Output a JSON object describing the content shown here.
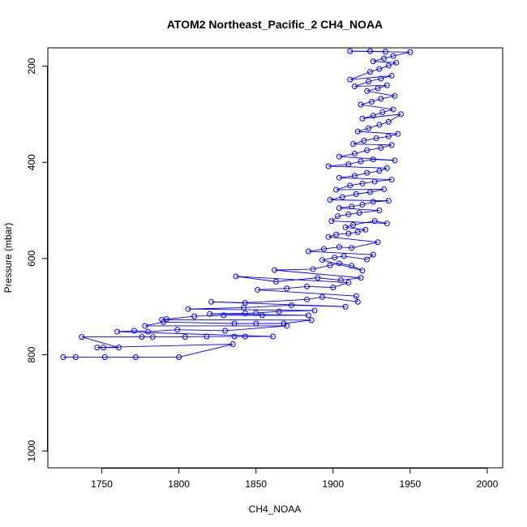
{
  "chart_data": {
    "type": "scatter",
    "title": "ATOM2 Northeast_Pacific_2 CH4_NOAA",
    "xlabel": "CH4_NOAA",
    "ylabel": "Pressure (mbar)",
    "xlim": [
      1715,
      2010
    ],
    "ylim": [
      1035,
      162
    ],
    "y_reversed": true,
    "x_ticks": [
      1750,
      1800,
      1850,
      1900,
      1950,
      2000
    ],
    "y_ticks": [
      200,
      400,
      600,
      800,
      1000
    ],
    "grid": false,
    "legend": "none",
    "marker": "open-circle",
    "connected": true,
    "series": [
      {
        "color": "#0000ff",
        "points": [
          [
            1725,
            805
          ],
          [
            1733,
            805
          ],
          [
            1752,
            805
          ],
          [
            1772,
            805
          ],
          [
            1800,
            805
          ],
          [
            1835,
            778
          ],
          [
            1747,
            785
          ],
          [
            1751,
            785
          ],
          [
            1761,
            785
          ],
          [
            1737,
            763
          ],
          [
            1776,
            763
          ],
          [
            1783,
            763
          ],
          [
            1804,
            763
          ],
          [
            1818,
            762
          ],
          [
            1836,
            762
          ],
          [
            1843,
            762
          ],
          [
            1861,
            762
          ],
          [
            1760,
            752
          ],
          [
            1771,
            750
          ],
          [
            1780,
            752
          ],
          [
            1799,
            748
          ],
          [
            1830,
            750
          ],
          [
            1870,
            740
          ],
          [
            1778,
            740
          ],
          [
            1790,
            732
          ],
          [
            1836,
            735
          ],
          [
            1850,
            735
          ],
          [
            1868,
            735
          ],
          [
            1886,
            728
          ],
          [
            1789,
            727
          ],
          [
            1792,
            726
          ],
          [
            1810,
            720
          ],
          [
            1829,
            718
          ],
          [
            1854,
            718
          ],
          [
            1884,
            718
          ],
          [
            1820,
            715
          ],
          [
            1843,
            714
          ],
          [
            1850,
            713
          ],
          [
            1865,
            710
          ],
          [
            1888,
            708
          ],
          [
            1806,
            705
          ],
          [
            1842,
            702
          ],
          [
            1873,
            697
          ],
          [
            1908,
            700
          ],
          [
            1821,
            690
          ],
          [
            1843,
            692
          ],
          [
            1883,
            685
          ],
          [
            1893,
            680
          ],
          [
            1916,
            690
          ],
          [
            1915,
            678
          ],
          [
            1851,
            665
          ],
          [
            1870,
            662
          ],
          [
            1883,
            658
          ],
          [
            1900,
            660
          ],
          [
            1910,
            650
          ],
          [
            1837,
            637
          ],
          [
            1863,
            648
          ],
          [
            1890,
            640
          ],
          [
            1905,
            645
          ],
          [
            1918,
            640
          ],
          [
            1862,
            624
          ],
          [
            1887,
            622
          ],
          [
            1898,
            614
          ],
          [
            1904,
            610
          ],
          [
            1912,
            615
          ],
          [
            1919,
            625
          ],
          [
            1893,
            603
          ],
          [
            1901,
            598
          ],
          [
            1907,
            595
          ],
          [
            1922,
            602
          ],
          [
            1926,
            592
          ],
          [
            1884,
            585
          ],
          [
            1894,
            580
          ],
          [
            1904,
            576
          ],
          [
            1912,
            578
          ],
          [
            1929,
            566
          ],
          [
            1897,
            555
          ],
          [
            1902,
            550
          ],
          [
            1910,
            548
          ],
          [
            1916,
            545
          ],
          [
            1921,
            540
          ],
          [
            1908,
            535
          ],
          [
            1913,
            530
          ],
          [
            1927,
            522
          ],
          [
            1935,
            527
          ],
          [
            1899,
            522
          ],
          [
            1903,
            512
          ],
          [
            1910,
            508
          ],
          [
            1917,
            505
          ],
          [
            1930,
            500
          ],
          [
            1904,
            495
          ],
          [
            1912,
            492
          ],
          [
            1919,
            488
          ],
          [
            1926,
            482
          ],
          [
            1936,
            480
          ],
          [
            1898,
            478
          ],
          [
            1906,
            472
          ],
          [
            1915,
            466
          ],
          [
            1924,
            462
          ],
          [
            1933,
            456
          ],
          [
            1902,
            457
          ],
          [
            1911,
            448
          ],
          [
            1919,
            444
          ],
          [
            1927,
            440
          ],
          [
            1938,
            436
          ],
          [
            1904,
            432
          ],
          [
            1914,
            428
          ],
          [
            1922,
            422
          ],
          [
            1930,
            418
          ],
          [
            1935,
            412
          ],
          [
            1897,
            408
          ],
          [
            1910,
            404
          ],
          [
            1918,
            398
          ],
          [
            1926,
            394
          ],
          [
            1940,
            396
          ],
          [
            1904,
            388
          ],
          [
            1914,
            382
          ],
          [
            1922,
            375
          ],
          [
            1931,
            370
          ],
          [
            1938,
            364
          ],
          [
            1913,
            362
          ],
          [
            1920,
            355
          ],
          [
            1928,
            350
          ],
          [
            1936,
            346
          ],
          [
            1942,
            341
          ],
          [
            1916,
            336
          ],
          [
            1923,
            329
          ],
          [
            1930,
            322
          ],
          [
            1936,
            316
          ],
          [
            1944,
            300
          ],
          [
            1919,
            309
          ],
          [
            1926,
            303
          ],
          [
            1932,
            296
          ],
          [
            1939,
            290
          ],
          [
            1918,
            280
          ],
          [
            1925,
            274
          ],
          [
            1931,
            268
          ],
          [
            1940,
            262
          ],
          [
            1922,
            252
          ],
          [
            1929,
            246
          ],
          [
            1935,
            240
          ],
          [
            1914,
            242
          ],
          [
            1923,
            232
          ],
          [
            1931,
            226
          ],
          [
            1938,
            220
          ],
          [
            1911,
            228
          ],
          [
            1924,
            212
          ],
          [
            1930,
            206
          ],
          [
            1936,
            199
          ],
          [
            1941,
            193
          ],
          [
            1926,
            190
          ],
          [
            1933,
            184
          ],
          [
            1939,
            179
          ],
          [
            1950,
            171
          ],
          [
            1911,
            169
          ],
          [
            1924,
            169
          ],
          [
            1934,
            170
          ]
        ]
      }
    ]
  }
}
